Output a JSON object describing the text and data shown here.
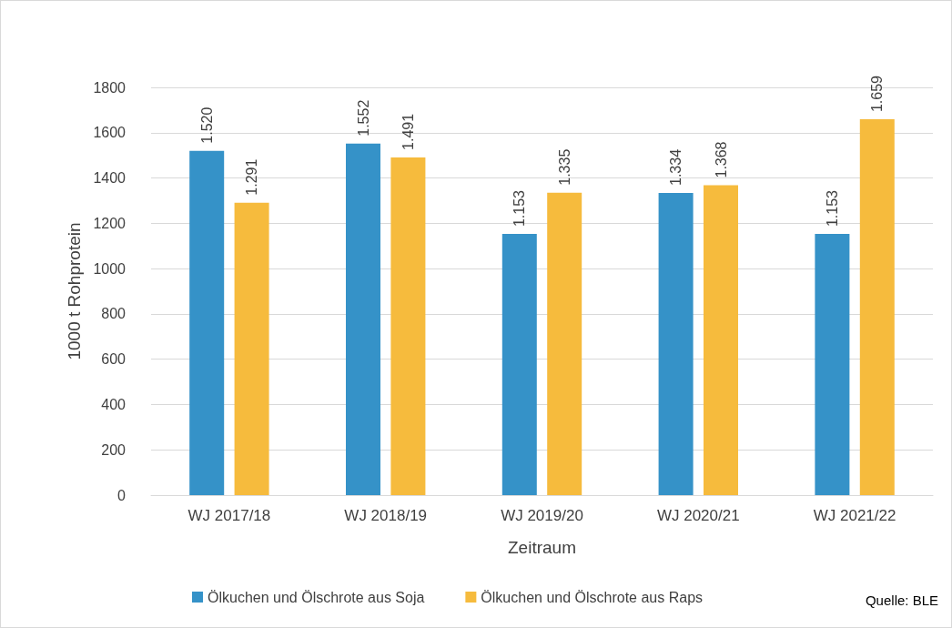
{
  "chart_data": {
    "type": "bar",
    "xlabel": "Zeitraum",
    "ylabel": "1000 t Rohprotein",
    "categories": [
      "WJ 2017/18",
      "WJ 2018/19",
      "WJ 2019/20",
      "WJ 2020/21",
      "WJ 2021/22"
    ],
    "series": [
      {
        "name": "Ölkuchen und Ölschrote aus Soja",
        "color": "#3592c8",
        "values": [
          1520,
          1552,
          1153,
          1334,
          1153
        ],
        "value_labels": [
          "1.520",
          "1.552",
          "1.153",
          "1.334",
          "1.153"
        ]
      },
      {
        "name": "Ölkuchen und Ölschrote aus Raps",
        "color": "#f6bb3d",
        "values": [
          1291,
          1491,
          1335,
          1368,
          1659
        ],
        "value_labels": [
          "1.291",
          "1.491",
          "1.335",
          "1.368",
          "1.659"
        ]
      }
    ],
    "ylim": [
      0,
      1800
    ],
    "yticks": [
      0,
      200,
      400,
      600,
      800,
      1000,
      1200,
      1400,
      1600,
      1800
    ],
    "grid": "y",
    "legend": "bottom",
    "annotations": [
      "Quelle: BLE"
    ]
  }
}
